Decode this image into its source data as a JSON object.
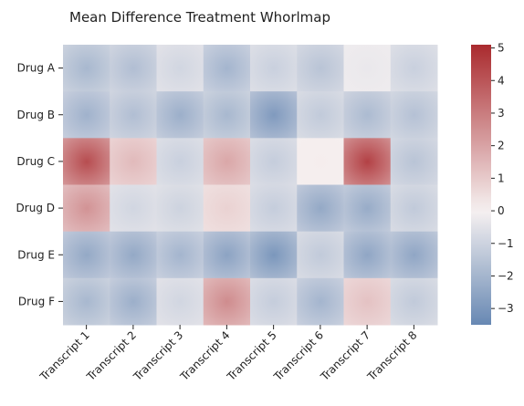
{
  "chart_data": {
    "type": "heatmap",
    "title": "Mean Difference Treatment Whorlmap",
    "xlabel": "",
    "ylabel": "",
    "rows": [
      "Drug A",
      "Drug B",
      "Drug C",
      "Drug D",
      "Drug E",
      "Drug F"
    ],
    "columns": [
      "Transcript 1",
      "Transcript 2",
      "Transcript 3",
      "Transcript 4",
      "Transcript 5",
      "Transcript 6",
      "Transcript 7",
      "Transcript 8"
    ],
    "values": [
      [
        -1.9,
        -1.7,
        -0.9,
        -2.0,
        -1.1,
        -1.5,
        -0.3,
        -1.1
      ],
      [
        -2.1,
        -1.7,
        -2.2,
        -1.9,
        -2.9,
        -1.3,
        -1.8,
        -1.6
      ],
      [
        4.2,
        1.4,
        -1.1,
        1.9,
        -1.2,
        0.1,
        4.5,
        -1.5
      ],
      [
        2.4,
        -0.9,
        -1.0,
        0.8,
        -1.2,
        -2.4,
        -2.3,
        -1.3
      ],
      [
        -2.4,
        -2.4,
        -2.0,
        -2.6,
        -3.0,
        -1.3,
        -2.5,
        -2.5
      ],
      [
        -1.9,
        -2.2,
        -0.9,
        2.6,
        -1.2,
        -2.0,
        1.2,
        -1.3
      ]
    ],
    "colorbar": {
      "min": -3.5,
      "max": 5.1,
      "ticks": [
        5,
        4,
        3,
        2,
        1,
        0,
        -1,
        -2,
        -3
      ]
    },
    "colors": {
      "low": "#6788b3",
      "mid": "#f6f1f1",
      "high": "#aa2a2e"
    },
    "grid": false,
    "legend": "colorbar-right"
  }
}
